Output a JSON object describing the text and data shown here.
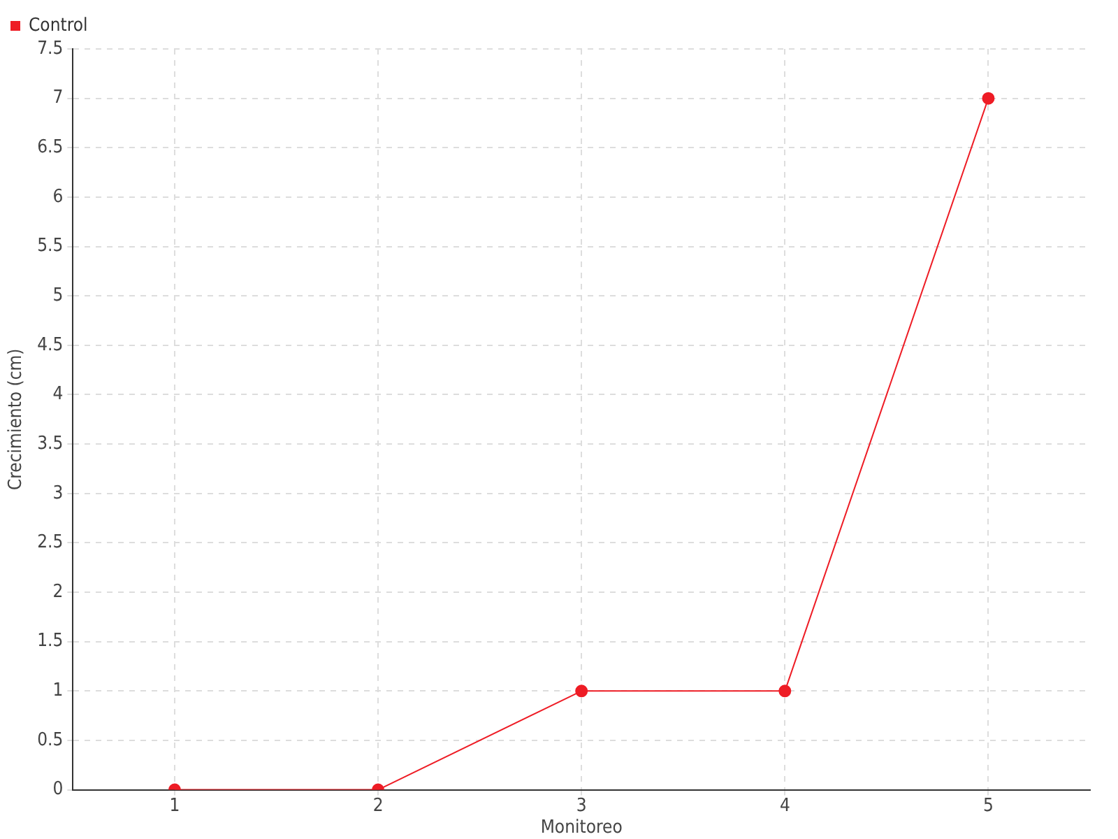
{
  "chart_data": {
    "type": "line",
    "xlabel": "Monitoreo",
    "ylabel": "Crecimiento (cm)",
    "categories": [
      "1",
      "2",
      "3",
      "4",
      "5"
    ],
    "series": [
      {
        "name": "Control",
        "color": "#ee1c25",
        "values": [
          0,
          0,
          1,
          1,
          7
        ]
      }
    ],
    "ylim": [
      0,
      7.5
    ],
    "yticks": [
      0,
      0.5,
      1,
      1.5,
      2,
      2.5,
      3,
      3.5,
      4,
      4.5,
      5,
      5.5,
      6,
      6.5,
      7,
      7.5
    ],
    "grid": true,
    "legend": "top left",
    "marker": "circle",
    "line_style": "solid"
  }
}
